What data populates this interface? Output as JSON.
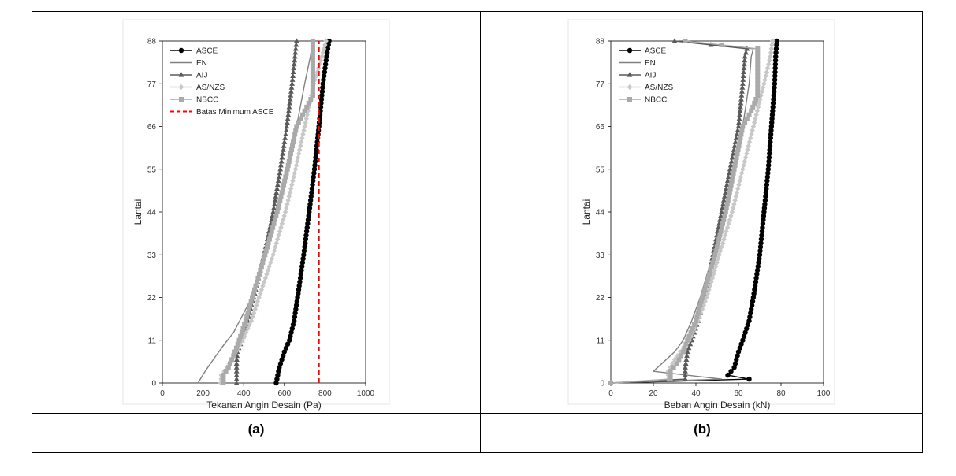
{
  "chart_data": [
    {
      "type": "line",
      "caption": "(a)",
      "xlabel": "Tekanan Angin Desain (Pa)",
      "ylabel": "Lantai",
      "xlim": [
        0,
        1000
      ],
      "ylim": [
        0,
        88
      ],
      "xticks": [
        "0",
        "200",
        "400",
        "600",
        "800",
        "1000"
      ],
      "yticks": [
        "0",
        "11",
        "22",
        "33",
        "44",
        "55",
        "66",
        "77",
        "88"
      ],
      "legend_position": "top-left",
      "series": [
        {
          "name": "ASCE",
          "color": "#000000",
          "marker": "circle",
          "style": "solid",
          "points": [
            [
              560,
              0
            ],
            [
              575,
              4
            ],
            [
              600,
              8
            ],
            [
              625,
              11
            ],
            [
              648,
              16
            ],
            [
              665,
              22
            ],
            [
              695,
              33
            ],
            [
              722,
              44
            ],
            [
              748,
              55
            ],
            [
              770,
              66
            ],
            [
              790,
              77
            ],
            [
              808,
              84
            ],
            [
              820,
              88
            ]
          ]
        },
        {
          "name": "EN",
          "color": "#808080",
          "marker": "none",
          "style": "solid",
          "points": [
            [
              175,
              0
            ],
            [
              210,
              3
            ],
            [
              250,
              6
            ],
            [
              305,
              10
            ],
            [
              350,
              13
            ],
            [
              400,
              18
            ],
            [
              440,
              22
            ],
            [
              510,
              33
            ],
            [
              565,
              44
            ],
            [
              615,
              55
            ],
            [
              660,
              66
            ],
            [
              700,
              77
            ],
            [
              728,
              84
            ],
            [
              740,
              88
            ]
          ]
        },
        {
          "name": "AIJ",
          "color": "#5a5a5a",
          "marker": "triangle",
          "style": "solid",
          "points": [
            [
              365,
              0
            ],
            [
              365,
              5
            ],
            [
              368,
              8
            ],
            [
              392,
              11
            ],
            [
              420,
              16
            ],
            [
              450,
              22
            ],
            [
              500,
              33
            ],
            [
              545,
              44
            ],
            [
              580,
              55
            ],
            [
              612,
              66
            ],
            [
              638,
              77
            ],
            [
              652,
              84
            ],
            [
              660,
              88
            ]
          ]
        },
        {
          "name": "AS/NZS",
          "color": "#c8c8c8",
          "marker": "diamond",
          "style": "solid",
          "points": [
            [
              288,
              0
            ],
            [
              290,
              2
            ],
            [
              318,
              4
            ],
            [
              350,
              7
            ],
            [
              395,
              11
            ],
            [
              438,
              16
            ],
            [
              475,
              22
            ],
            [
              545,
              33
            ],
            [
              605,
              44
            ],
            [
              655,
              55
            ],
            [
              700,
              66
            ],
            [
              745,
              77
            ],
            [
              785,
              84
            ],
            [
              805,
              88
            ]
          ]
        },
        {
          "name": "NBCC",
          "color": "#aaaaaa",
          "marker": "square",
          "style": "solid",
          "points": [
            [
              300,
              0
            ],
            [
              300,
              2
            ],
            [
              325,
              4
            ],
            [
              350,
              7
            ],
            [
              378,
              11
            ],
            [
              410,
              16
            ],
            [
              442,
              22
            ],
            [
              505,
              33
            ],
            [
              565,
              44
            ],
            [
              615,
              55
            ],
            [
              660,
              66
            ],
            [
              700,
              70
            ],
            [
              740,
              74
            ],
            [
              740,
              88
            ]
          ]
        },
        {
          "name": "Batas Minimum ASCE",
          "color": "#ff0000",
          "marker": "none",
          "style": "dashed",
          "points": [
            [
              770,
              0
            ],
            [
              770,
              88
            ]
          ]
        }
      ]
    },
    {
      "type": "line",
      "caption": "(b)",
      "xlabel": "Beban Angin Desain (kN)",
      "ylabel": "Lantai",
      "xlim": [
        0,
        100
      ],
      "ylim": [
        0,
        88
      ],
      "xticks": [
        "0",
        "20",
        "40",
        "60",
        "80",
        "100"
      ],
      "yticks": [
        "0",
        "11",
        "22",
        "33",
        "44",
        "55",
        "66",
        "77",
        "88"
      ],
      "legend_position": "top-left",
      "series": [
        {
          "name": "ASCE",
          "color": "#000000",
          "marker": "circle",
          "style": "solid",
          "points": [
            [
              0,
              0
            ],
            [
              65,
              1
            ],
            [
              55,
              2
            ],
            [
              58,
              4
            ],
            [
              60,
              8
            ],
            [
              62,
              11
            ],
            [
              65,
              16
            ],
            [
              67,
              22
            ],
            [
              70,
              33
            ],
            [
              72,
              44
            ],
            [
              74,
              55
            ],
            [
              75.5,
              66
            ],
            [
              77,
              77
            ],
            [
              77.5,
              84
            ],
            [
              78,
              88
            ]
          ]
        },
        {
          "name": "EN",
          "color": "#808080",
          "marker": "none",
          "style": "solid",
          "points": [
            [
              0,
              0
            ],
            [
              52,
              1
            ],
            [
              20,
              3
            ],
            [
              24,
              5
            ],
            [
              30,
              8
            ],
            [
              34,
              11
            ],
            [
              38,
              16
            ],
            [
              42,
              22
            ],
            [
              48,
              33
            ],
            [
              53,
              44
            ],
            [
              58,
              55
            ],
            [
              62,
              66
            ],
            [
              65,
              77
            ],
            [
              66,
              84
            ],
            [
              67,
              86
            ],
            [
              34,
              88
            ]
          ]
        },
        {
          "name": "AIJ",
          "color": "#5a5a5a",
          "marker": "triangle",
          "style": "solid",
          "points": [
            [
              0,
              0
            ],
            [
              35,
              1
            ],
            [
              35,
              4
            ],
            [
              36,
              8
            ],
            [
              38,
              11
            ],
            [
              41,
              16
            ],
            [
              44,
              22
            ],
            [
              48,
              33
            ],
            [
              52,
              44
            ],
            [
              56,
              55
            ],
            [
              60,
              66
            ],
            [
              62,
              77
            ],
            [
              63,
              84
            ],
            [
              64,
              86
            ],
            [
              30,
              88
            ]
          ]
        },
        {
          "name": "AS/NZS",
          "color": "#c8c8c8",
          "marker": "diamond",
          "style": "solid",
          "points": [
            [
              0,
              0
            ],
            [
              27,
              1
            ],
            [
              27,
              3
            ],
            [
              30,
              6
            ],
            [
              34,
              9
            ],
            [
              37,
              11
            ],
            [
              41,
              16
            ],
            [
              45,
              22
            ],
            [
              51,
              33
            ],
            [
              57,
              44
            ],
            [
              62,
              55
            ],
            [
              67,
              66
            ],
            [
              72,
              77
            ],
            [
              75,
              84
            ],
            [
              76,
              88
            ]
          ]
        },
        {
          "name": "NBCC",
          "color": "#aaaaaa",
          "marker": "square",
          "style": "solid",
          "points": [
            [
              0,
              0
            ],
            [
              28,
              1
            ],
            [
              28,
              3
            ],
            [
              31,
              5
            ],
            [
              34,
              8
            ],
            [
              36,
              11
            ],
            [
              40,
              16
            ],
            [
              43,
              22
            ],
            [
              49,
              33
            ],
            [
              54,
              44
            ],
            [
              58,
              55
            ],
            [
              62,
              66
            ],
            [
              66,
              70
            ],
            [
              69,
              74
            ],
            [
              69,
              86
            ],
            [
              35,
              88
            ]
          ]
        }
      ]
    }
  ]
}
